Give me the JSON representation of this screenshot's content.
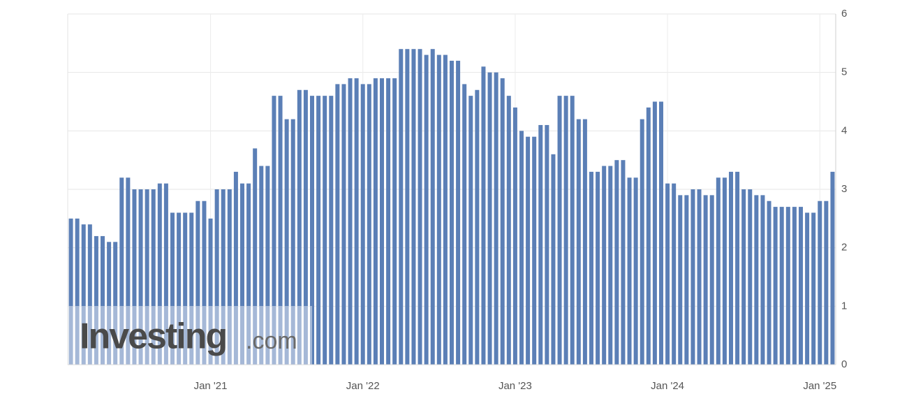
{
  "chart_data": {
    "type": "bar",
    "watermark": [
      "Investing",
      ".com"
    ],
    "color": "#5b7fb6",
    "grid": true,
    "ylim": [
      0,
      6
    ],
    "yticks": [
      0,
      1,
      2,
      3,
      4,
      5,
      6
    ],
    "categories": [
      null,
      null,
      null,
      null,
      null,
      null,
      null,
      null,
      null,
      null,
      null,
      null,
      null,
      null,
      null,
      null,
      null,
      null,
      null,
      null,
      null,
      null,
      "Jan '21",
      null,
      null,
      null,
      null,
      null,
      null,
      null,
      null,
      null,
      null,
      null,
      null,
      null,
      null,
      null,
      null,
      null,
      null,
      null,
      null,
      null,
      null,
      null,
      "Jan '22",
      null,
      null,
      null,
      null,
      null,
      null,
      null,
      null,
      null,
      null,
      null,
      null,
      null,
      null,
      null,
      null,
      null,
      null,
      null,
      null,
      null,
      null,
      null,
      "Jan '23",
      null,
      null,
      null,
      null,
      null,
      null,
      null,
      null,
      null,
      null,
      null,
      null,
      null,
      null,
      null,
      null,
      null,
      null,
      null,
      null,
      null,
      null,
      null,
      "Jan '24",
      null,
      null,
      null,
      null,
      null,
      null,
      null,
      null,
      null,
      null,
      null,
      null,
      null,
      null,
      null,
      null,
      null,
      null,
      null,
      null,
      null,
      null,
      null,
      "Jan '25",
      null,
      null
    ],
    "values": [
      2.5,
      2.5,
      2.4,
      2.4,
      2.2,
      2.2,
      2.1,
      2.1,
      3.2,
      3.2,
      3.0,
      3.0,
      3.0,
      3.0,
      3.1,
      3.1,
      2.6,
      2.6,
      2.6,
      2.6,
      2.8,
      2.8,
      2.5,
      3.0,
      3.0,
      3.0,
      3.3,
      3.1,
      3.1,
      3.7,
      3.4,
      3.4,
      4.6,
      4.6,
      4.2,
      4.2,
      4.7,
      4.7,
      4.6,
      4.6,
      4.6,
      4.6,
      4.8,
      4.8,
      4.9,
      4.9,
      4.8,
      4.8,
      4.9,
      4.9,
      4.9,
      4.9,
      5.4,
      5.4,
      5.4,
      5.4,
      5.3,
      5.4,
      5.3,
      5.3,
      5.2,
      5.2,
      4.8,
      4.6,
      4.7,
      5.1,
      5.0,
      5.0,
      4.9,
      4.6,
      4.4,
      4.0,
      3.9,
      3.9,
      4.1,
      4.1,
      3.6,
      4.6,
      4.6,
      4.6,
      4.2,
      4.2,
      3.3,
      3.3,
      3.4,
      3.4,
      3.5,
      3.5,
      3.2,
      3.2,
      4.2,
      4.4,
      4.5,
      4.5,
      3.1,
      3.1,
      2.9,
      2.9,
      3.0,
      3.0,
      2.9,
      2.9,
      3.2,
      3.2,
      3.3,
      3.3,
      3.0,
      3.0,
      2.9,
      2.9,
      2.8,
      2.7,
      2.7,
      2.7,
      2.7,
      2.7,
      2.6,
      2.6,
      2.8,
      2.8,
      3.3
    ]
  }
}
